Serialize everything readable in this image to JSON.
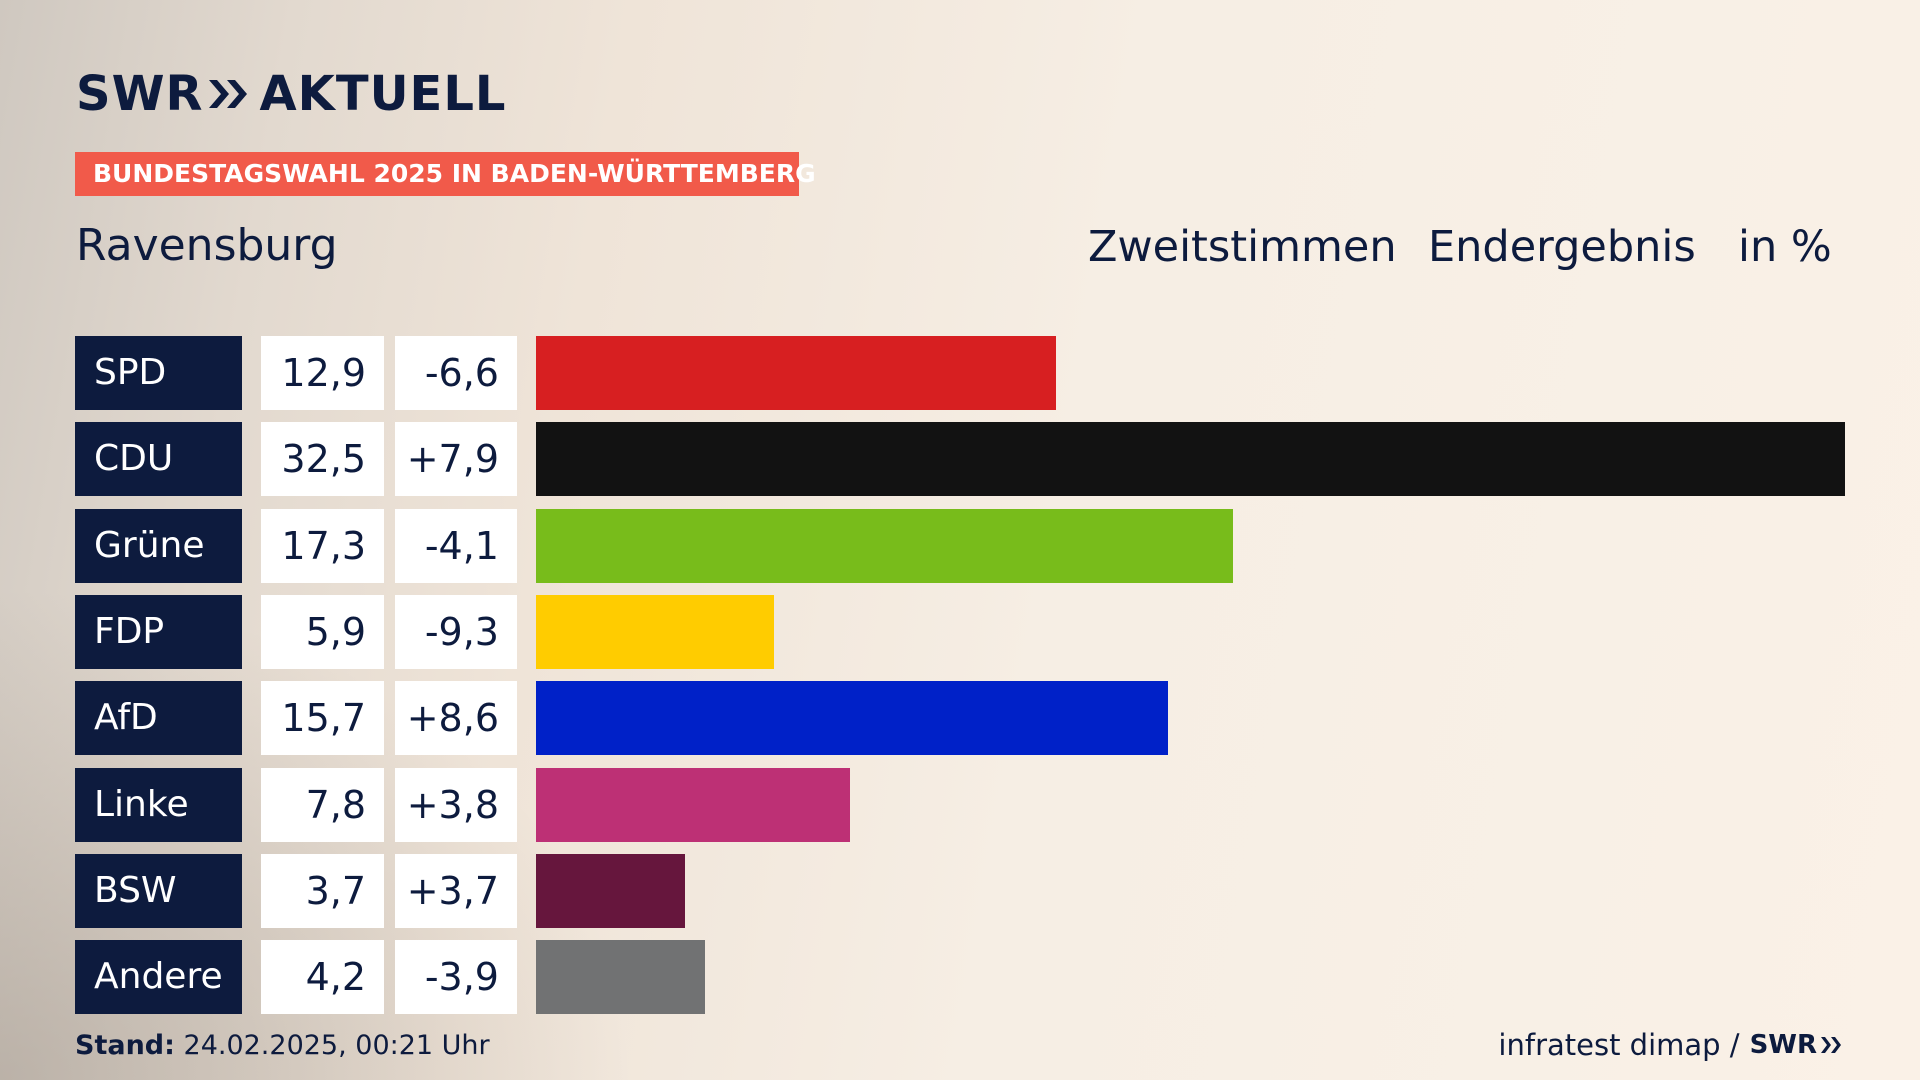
{
  "brand": {
    "logo_left": "SWR",
    "logo_right": "AKTUELL",
    "footer_logo": "SWR"
  },
  "banner": "BUNDESTAGSWAHL 2025 IN BADEN-WÜRTTEMBERG",
  "region": "Ravensburg",
  "header": {
    "vote_type": "Zweitstimmen",
    "result_type": "Endergebnis",
    "unit": "in %"
  },
  "footer": {
    "stand_label": "Stand:",
    "stand_value": "24.02.2025, 00:21 Uhr",
    "source": "infratest dimap /"
  },
  "colors": {
    "navy": "#0d1b3e",
    "banner": "#f15a4a"
  },
  "chart_data": {
    "type": "bar",
    "orientation": "horizontal",
    "categories": [
      "SPD",
      "CDU",
      "Grüne",
      "FDP",
      "AfD",
      "Linke",
      "BSW",
      "Andere"
    ],
    "values": [
      12.9,
      32.5,
      17.3,
      5.9,
      15.7,
      7.8,
      3.7,
      4.2
    ],
    "value_labels": [
      "12,9",
      "32,5",
      "17,3",
      "5,9",
      "15,7",
      "7,8",
      "3,7",
      "4,2"
    ],
    "changes": [
      -6.6,
      7.9,
      -4.1,
      -9.3,
      8.6,
      3.8,
      3.7,
      -3.9
    ],
    "change_labels": [
      "-6,6",
      "+7,9",
      "-4,1",
      "-9,3",
      "+8,6",
      "+3,8",
      "+3,7",
      "-3,9"
    ],
    "colors": [
      "#d71f21",
      "#121212",
      "#78bc1b",
      "#ffcc00",
      "#0021c8",
      "#bd3075",
      "#66163d",
      "#717273"
    ],
    "xlim": [
      0,
      32.5
    ],
    "legend": "none",
    "grid": false
  }
}
